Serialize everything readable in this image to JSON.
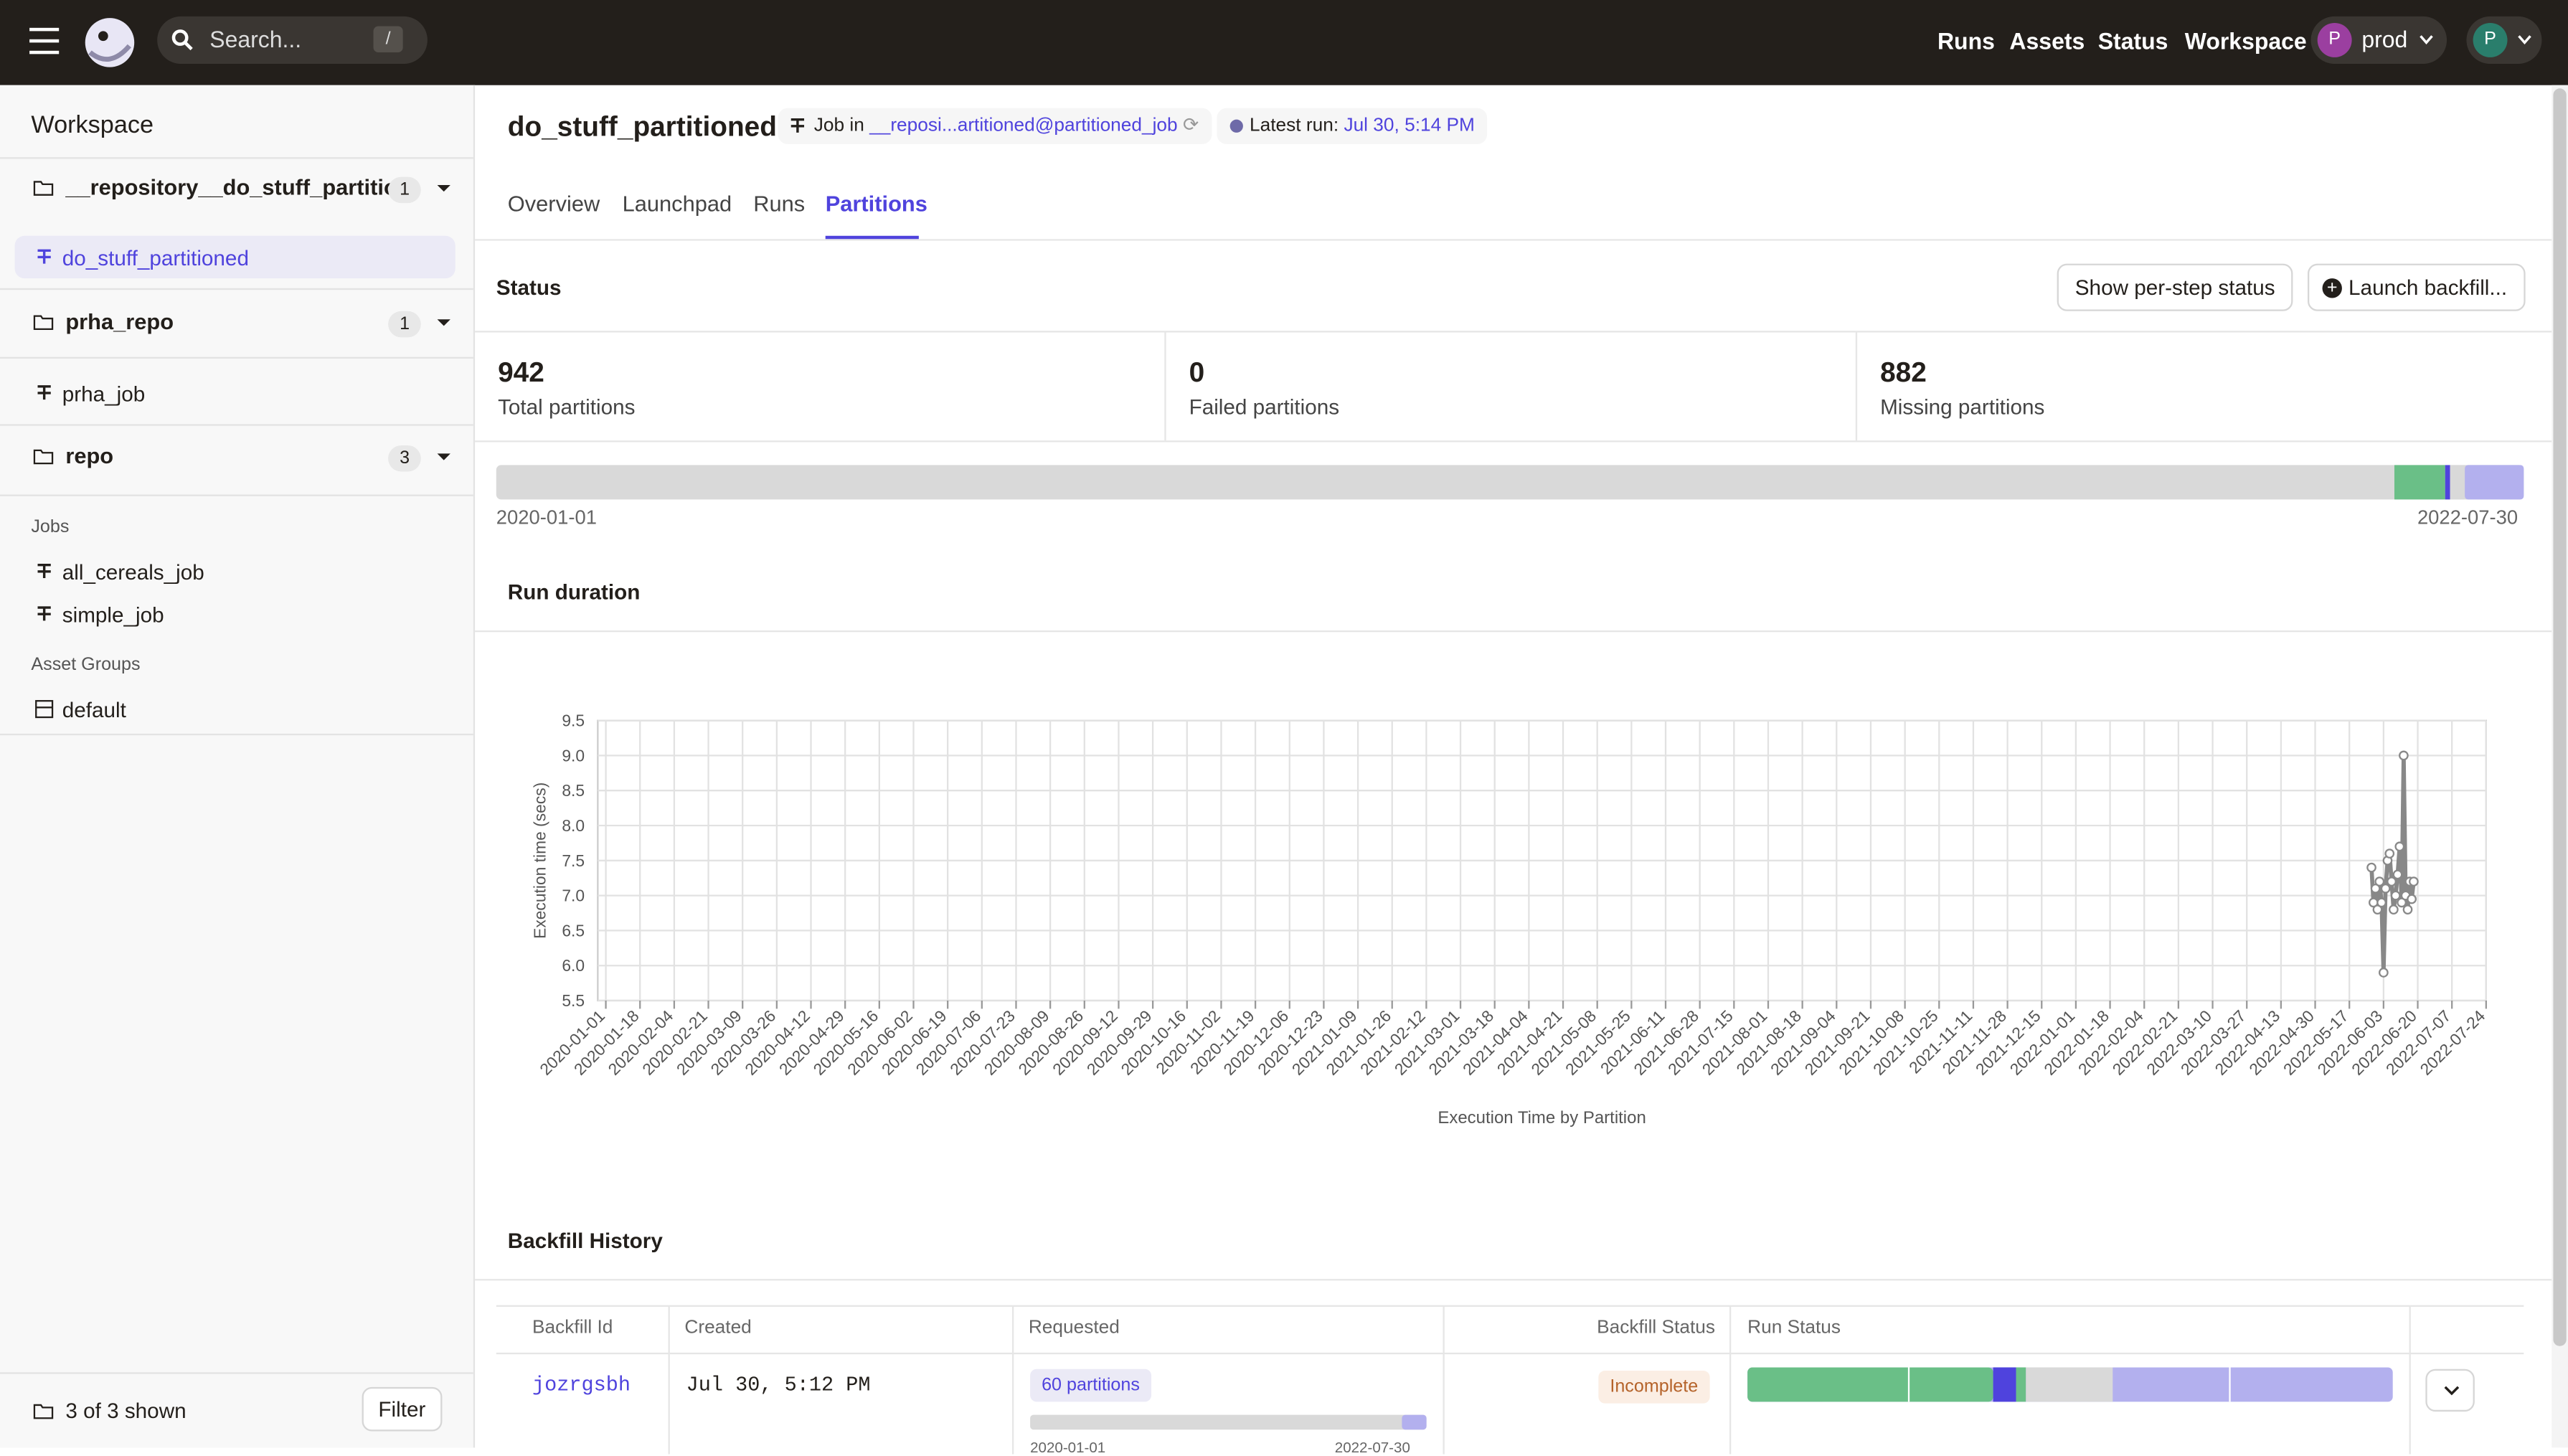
{
  "topbar": {
    "search_placeholder": "Search...",
    "search_shortcut": "/",
    "nav": [
      "Runs",
      "Assets",
      "Status",
      "Workspace"
    ],
    "deployment_initial": "P",
    "deployment": "prod",
    "user_initial": "P"
  },
  "sidebar": {
    "title": "Workspace",
    "repos": [
      {
        "name": "__repository__do_stuff_partitio...",
        "count": 1,
        "jobs": [
          "do_stuff_partitioned"
        ]
      },
      {
        "name": "prha_repo",
        "count": 1,
        "jobs": [
          "prha_job"
        ]
      },
      {
        "name": "repo",
        "count": 3
      }
    ],
    "jobs_heading": "Jobs",
    "jobs": [
      "all_cereals_job",
      "simple_job"
    ],
    "asset_groups_heading": "Asset Groups",
    "asset_groups": [
      "default"
    ],
    "footer": "3 of 3 shown",
    "filter": "Filter"
  },
  "header": {
    "title": "do_stuff_partitioned",
    "job_in": "Job in",
    "job_repo": "__reposi...artitioned@partitioned_job",
    "latest_run": "Latest run:",
    "latest_run_time": "Jul 30, 5:14 PM"
  },
  "tabs": [
    "Overview",
    "Launchpad",
    "Runs",
    "Partitions"
  ],
  "status": {
    "title": "Status",
    "buttons": [
      "Show per-step status",
      "Launch backfill..."
    ],
    "stats": [
      {
        "value": 942,
        "label": "Total partitions"
      },
      {
        "value": 0,
        "label": "Failed partitions"
      },
      {
        "value": 882,
        "label": "Missing partitions"
      }
    ],
    "range_start": "2020-01-01",
    "range_end": "2022-07-30"
  },
  "chart_data": {
    "type": "line",
    "title": "Run duration",
    "ylabel": "Execution time (secs)",
    "xlabel": "Execution Time by Partition",
    "x": [
      "2022-05-28",
      "2022-05-29",
      "2022-05-30",
      "2022-05-31",
      "2022-06-01",
      "2022-06-02",
      "2022-06-03",
      "2022-06-04",
      "2022-06-05",
      "2022-06-06",
      "2022-06-07",
      "2022-06-08",
      "2022-06-09",
      "2022-06-10",
      "2022-06-11",
      "2022-06-12",
      "2022-06-13",
      "2022-06-14",
      "2022-06-15",
      "2022-06-16",
      "2022-06-17",
      "2022-06-18"
    ],
    "series": [
      {
        "name": "Execution time",
        "color": "#888888",
        "values": [
          7.4,
          6.9,
          7.1,
          6.8,
          7.2,
          6.9,
          5.9,
          7.1,
          7.5,
          7.6,
          7.2,
          6.8,
          7.0,
          7.3,
          7.7,
          6.9,
          9.0,
          7.0,
          6.8,
          7.2,
          6.95,
          7.2
        ]
      }
    ],
    "xlim": [
      "2019-12-28",
      "2022-07-24"
    ],
    "xticks": [
      "2020-01-01",
      "2020-01-18",
      "2020-02-04",
      "2020-02-21",
      "2020-03-09",
      "2020-03-26",
      "2020-04-12",
      "2020-04-29",
      "2020-05-16",
      "2020-06-02",
      "2020-06-19",
      "2020-07-06",
      "2020-07-23",
      "2020-08-09",
      "2020-08-26",
      "2020-09-12",
      "2020-09-29",
      "2020-10-16",
      "2020-11-02",
      "2020-11-19",
      "2020-12-06",
      "2020-12-23",
      "2021-01-09",
      "2021-01-26",
      "2021-02-12",
      "2021-03-01",
      "2021-03-18",
      "2021-04-04",
      "2021-04-21",
      "2021-05-08",
      "2021-05-25",
      "2021-06-11",
      "2021-06-28",
      "2021-07-15",
      "2021-08-01",
      "2021-08-18",
      "2021-09-04",
      "2021-09-21",
      "2021-10-08",
      "2021-10-25",
      "2021-11-11",
      "2021-11-28",
      "2021-12-15",
      "2022-01-01",
      "2022-01-18",
      "2022-02-04",
      "2022-02-21",
      "2022-03-10",
      "2022-03-27",
      "2022-04-13",
      "2022-04-30",
      "2022-05-17",
      "2022-06-03",
      "2022-06-20",
      "2022-07-07",
      "2022-07-24"
    ],
    "ylim": [
      5.5,
      9.5
    ],
    "yticks": [
      {
        "value": 5.5,
        "label": "5.5"
      },
      {
        "value": 6,
        "label": "6.0"
      },
      {
        "value": 6.5,
        "label": "6.5"
      },
      {
        "value": 7,
        "label": "7.0"
      },
      {
        "value": 7.5,
        "label": "7.5"
      },
      {
        "value": 8,
        "label": "8.0"
      },
      {
        "value": 8.5,
        "label": "8.5"
      },
      {
        "value": 9,
        "label": "9.0"
      },
      {
        "value": 9.5,
        "label": "9.5"
      }
    ],
    "grid": true
  },
  "backfill": {
    "title": "Backfill History",
    "columns": [
      "Backfill Id",
      "Created",
      "Requested",
      "Backfill Status",
      "Run Status"
    ],
    "rows": [
      {
        "id": "jozrgsbh",
        "created": "Jul 30, 5:12 PM",
        "requested": "60 partitions",
        "range_start": "2020-01-01",
        "range_end": "2022-07-30",
        "status": "Incomplete"
      }
    ]
  }
}
